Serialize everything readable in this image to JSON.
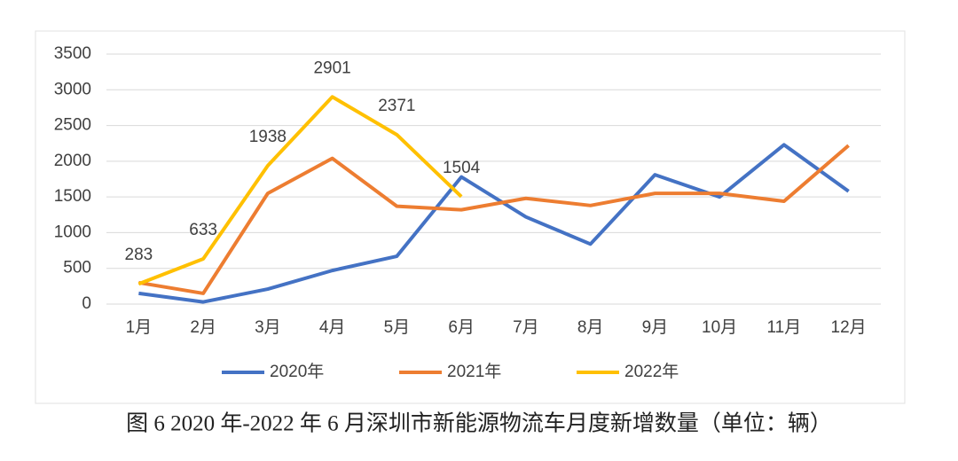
{
  "chart_data": {
    "type": "line",
    "caption": "图 6 2020 年-2022 年 6 月深圳市新能源物流车月度新增数量（单位：辆）",
    "categories": [
      "1月",
      "2月",
      "3月",
      "4月",
      "5月",
      "6月",
      "7月",
      "8月",
      "9月",
      "10月",
      "11月",
      "12月"
    ],
    "series": [
      {
        "name": "2020年",
        "color": "#4472c4",
        "values": [
          150,
          30,
          210,
          470,
          670,
          1780,
          1220,
          840,
          1810,
          1500,
          2230,
          1580
        ]
      },
      {
        "name": "2021年",
        "color": "#ed7d31",
        "values": [
          300,
          150,
          1550,
          2040,
          1370,
          1320,
          1480,
          1380,
          1550,
          1550,
          1440,
          2220
        ]
      },
      {
        "name": "2022年",
        "color": "#ffc000",
        "values": [
          283,
          633,
          1938,
          2901,
          2371,
          1504,
          null,
          null,
          null,
          null,
          null,
          null
        ],
        "show_labels": true
      }
    ],
    "ylim": [
      0,
      3500
    ],
    "yticks": [
      0,
      500,
      1000,
      1500,
      2000,
      2500,
      3000,
      3500
    ],
    "grid": true,
    "legend": "bottom"
  }
}
